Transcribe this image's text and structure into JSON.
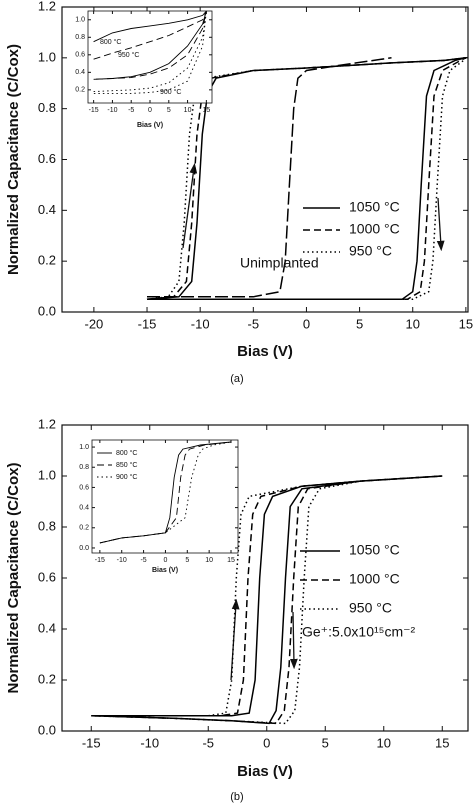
{
  "chart_data": [
    {
      "type": "line",
      "xlabel": "Bias (V)",
      "ylabel": "Normalized Capacitance (C/Cox)",
      "panel_label": "(a)",
      "xlim": [
        -23,
        15.2
      ],
      "ylim": [
        0,
        1.2
      ],
      "xticks": [
        -20,
        -15,
        -10,
        -5,
        0,
        5,
        10,
        15
      ],
      "yticks": [
        {
          "value": 0,
          "label": "0.0"
        },
        0.2,
        0.4,
        0.6,
        0.8,
        {
          "value": 1,
          "label": "1.0"
        },
        1.2
      ],
      "legend": "center right",
      "series": [
        {
          "name": "1050 °C",
          "color": "#000000",
          "dash": "solid",
          "x": [
            -15,
            -12,
            -10.8,
            -10.3,
            -9.8,
            -9.3,
            -8.5,
            -5,
            0,
            8,
            13,
            15,
            14,
            12,
            11.3,
            10.8,
            10.4,
            10,
            9,
            0,
            -15
          ],
          "values": [
            0.05,
            0.06,
            0.12,
            0.35,
            0.7,
            0.86,
            0.92,
            0.95,
            0.96,
            0.98,
            0.99,
            1.0,
            0.99,
            0.95,
            0.85,
            0.5,
            0.2,
            0.08,
            0.05,
            0.05,
            0.05
          ]
        },
        {
          "name": "1000 °C",
          "color": "#000000",
          "dash": "dashed",
          "x": [
            -15,
            -12.5,
            -11.3,
            -10.8,
            -10.3,
            -9.8,
            -9,
            -5,
            0,
            8,
            13,
            15,
            14.5,
            12.8,
            12,
            11.5,
            11.1,
            10.7,
            9.5,
            0,
            -15
          ],
          "values": [
            0.05,
            0.06,
            0.12,
            0.35,
            0.7,
            0.86,
            0.92,
            0.95,
            0.96,
            0.98,
            0.99,
            1.0,
            0.99,
            0.95,
            0.85,
            0.5,
            0.2,
            0.08,
            0.05,
            0.05,
            0.05
          ]
        },
        {
          "name": "950 °C",
          "color": "#000000",
          "dash": "dotted",
          "x": [
            -15,
            -13,
            -12,
            -11.5,
            -11,
            -10.5,
            -9.5,
            -5,
            0,
            8,
            13,
            15,
            14.8,
            13.5,
            12.8,
            12.3,
            11.9,
            11.5,
            10,
            0,
            -15
          ],
          "values": [
            0.05,
            0.06,
            0.12,
            0.35,
            0.7,
            0.86,
            0.92,
            0.95,
            0.96,
            0.98,
            0.99,
            1.0,
            0.99,
            0.95,
            0.85,
            0.5,
            0.2,
            0.08,
            0.05,
            0.05,
            0.05
          ]
        }
      ],
      "reference": {
        "name": "Unimplanted",
        "color": "#000000",
        "dash": "longdash",
        "x": [
          -15,
          -5,
          -2.5,
          -2,
          -1.6,
          -1.2,
          -0.8,
          0,
          3,
          8
        ],
        "values": [
          0.06,
          0.06,
          0.08,
          0.2,
          0.5,
          0.8,
          0.92,
          0.95,
          0.97,
          1.0
        ]
      }
    },
    {
      "type": "line",
      "xlabel": "Bias (V)",
      "legend": "none",
      "xlim": [
        -16.5,
        16.5
      ],
      "ylim": [
        0.05,
        1.1
      ],
      "xticks": [
        -15,
        -10,
        -5,
        0,
        5,
        10,
        15
      ],
      "yticks": [
        0.2,
        0.4,
        0.6,
        0.8,
        {
          "value": 1,
          "label": "1.0"
        }
      ],
      "series": [
        {
          "name": "800 °C",
          "color": "#000000",
          "dash": "solid",
          "x": [
            -15,
            -10,
            -5,
            0,
            5,
            10,
            14,
            15,
            14,
            10,
            5,
            0,
            -5,
            -10,
            -15
          ],
          "values": [
            0.75,
            0.85,
            0.9,
            0.93,
            0.96,
            1.0,
            1.05,
            1.1,
            0.95,
            0.7,
            0.5,
            0.4,
            0.35,
            0.33,
            0.32
          ]
        },
        {
          "name": "950 °C",
          "color": "#000000",
          "dash": "dashed",
          "x": [
            -15,
            -10,
            -5,
            0,
            5,
            10,
            14,
            15,
            14,
            10,
            5,
            0,
            -5,
            -10,
            -15
          ],
          "values": [
            0.55,
            0.62,
            0.68,
            0.75,
            0.82,
            0.92,
            1.0,
            1.1,
            0.9,
            0.6,
            0.45,
            0.38,
            0.34,
            0.33,
            0.32
          ]
        },
        {
          "name": "900 °C",
          "color": "#000000",
          "dash": "dotted",
          "x": [
            -15,
            -10,
            -5,
            0,
            5,
            10,
            14,
            15,
            14,
            10,
            5,
            0,
            -5,
            -10,
            -15
          ],
          "values": [
            0.18,
            0.19,
            0.2,
            0.22,
            0.28,
            0.45,
            0.8,
            1.1,
            0.7,
            0.3,
            0.2,
            0.17,
            0.16,
            0.16,
            0.16
          ]
        }
      ]
    },
    {
      "type": "line",
      "xlabel": "Bias (V)",
      "ylabel": "Normalized Capacitance (C/Cox)",
      "panel_label": "(b)",
      "annotation": "Ge⁺:5.0x10¹⁵cm⁻²",
      "xlim": [
        -17.5,
        17.2
      ],
      "ylim": [
        0,
        1.2
      ],
      "xticks": [
        -15,
        -10,
        -5,
        0,
        5,
        10,
        15
      ],
      "yticks": [
        {
          "value": 0,
          "label": "0.0"
        },
        0.2,
        0.4,
        0.6,
        0.8,
        {
          "value": 1,
          "label": "1.0"
        },
        1.2
      ],
      "legend": "center right",
      "series": [
        {
          "name": "1050 °C",
          "color": "#000000",
          "dash": "solid",
          "x": [
            -15,
            -8,
            -3,
            -1.5,
            -1,
            -0.6,
            -0.2,
            0.5,
            3,
            8,
            15,
            8,
            3,
            2,
            1.6,
            1.2,
            0.8,
            0.2,
            -3,
            -8,
            -15
          ],
          "values": [
            0.06,
            0.06,
            0.06,
            0.07,
            0.2,
            0.6,
            0.85,
            0.92,
            0.96,
            0.98,
            1.0,
            0.98,
            0.95,
            0.88,
            0.6,
            0.25,
            0.08,
            0.03,
            0.04,
            0.05,
            0.06
          ]
        },
        {
          "name": "1000 °C",
          "color": "#000000",
          "dash": "dashed",
          "x": [
            -15,
            -8,
            -4,
            -2.5,
            -2,
            -1.6,
            -1.2,
            -0.5,
            3,
            8,
            15,
            8,
            3.5,
            2.7,
            2.3,
            1.9,
            1.5,
            0.8,
            -3,
            -8,
            -15
          ],
          "values": [
            0.06,
            0.06,
            0.06,
            0.07,
            0.2,
            0.6,
            0.85,
            0.92,
            0.96,
            0.98,
            1.0,
            0.98,
            0.95,
            0.88,
            0.6,
            0.25,
            0.08,
            0.03,
            0.04,
            0.05,
            0.06
          ]
        },
        {
          "name": "950 °C",
          "color": "#000000",
          "dash": "dotted",
          "x": [
            -15,
            -8,
            -5,
            -3.5,
            -3,
            -2.6,
            -2.2,
            -1.5,
            3,
            8,
            15,
            8,
            4.5,
            3.6,
            3.2,
            2.8,
            2.4,
            1.6,
            -3,
            -8,
            -15
          ],
          "values": [
            0.06,
            0.06,
            0.06,
            0.07,
            0.2,
            0.6,
            0.85,
            0.92,
            0.96,
            0.98,
            1.0,
            0.98,
            0.95,
            0.88,
            0.6,
            0.25,
            0.08,
            0.03,
            0.04,
            0.05,
            0.06
          ]
        }
      ]
    },
    {
      "type": "line",
      "xlabel": "Bias (V)",
      "legend": "upper left",
      "xlim": [
        -16.8,
        16.6
      ],
      "ylim": [
        -0.05,
        1.07
      ],
      "xticks": [
        -15,
        -10,
        -5,
        0,
        5,
        10,
        15
      ],
      "yticks": [
        {
          "value": 0,
          "label": "0.0"
        },
        0.2,
        0.4,
        0.6,
        0.8,
        {
          "value": 1,
          "label": "1.0"
        }
      ],
      "series": [
        {
          "name": "800 °C",
          "color": "#000000",
          "dash": "solid",
          "x": [
            -15,
            -10,
            -5,
            0,
            1,
            2,
            3,
            4,
            8,
            15
          ],
          "values": [
            0.05,
            0.1,
            0.12,
            0.15,
            0.3,
            0.7,
            0.92,
            0.98,
            1.02,
            1.05
          ]
        },
        {
          "name": "850 °C",
          "color": "#000000",
          "dash": "dashed",
          "x": [
            -15,
            -10,
            -5,
            0,
            2.5,
            3.5,
            4.5,
            5.5,
            9,
            15
          ],
          "values": [
            0.05,
            0.1,
            0.12,
            0.15,
            0.3,
            0.7,
            0.92,
            0.98,
            1.02,
            1.05
          ]
        },
        {
          "name": "900 °C",
          "color": "#000000",
          "dash": "dotted",
          "x": [
            -15,
            -10,
            -5,
            0,
            4.5,
            6,
            7.5,
            8.5,
            11,
            15
          ],
          "values": [
            0.05,
            0.1,
            0.12,
            0.15,
            0.3,
            0.7,
            0.92,
            0.98,
            1.02,
            1.05
          ]
        }
      ]
    }
  ]
}
